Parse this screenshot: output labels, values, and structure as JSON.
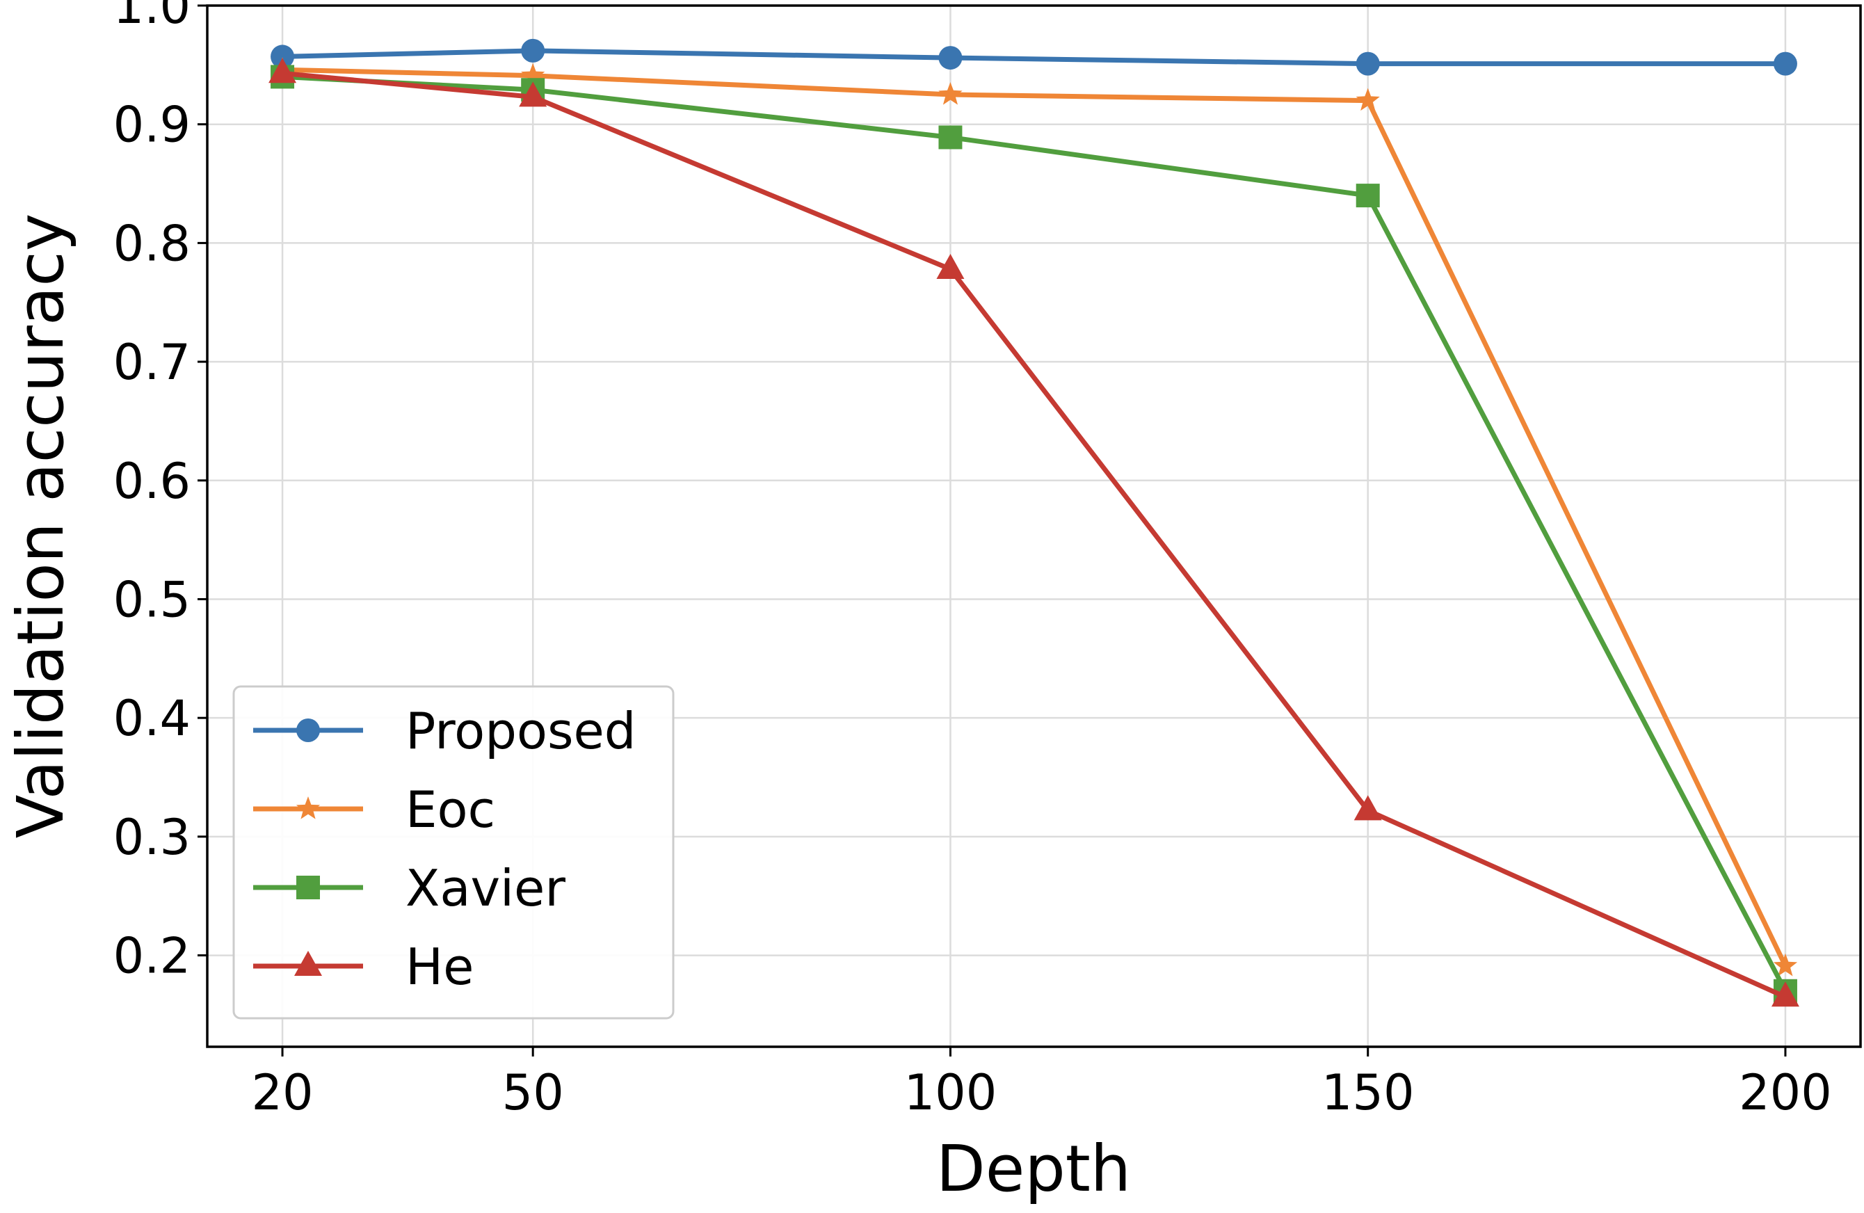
{
  "chart_data": {
    "type": "line",
    "title": "",
    "xlabel": "Depth",
    "ylabel": "Validation accuracy",
    "x": [
      20,
      50,
      100,
      150,
      200
    ],
    "xticks": [
      "20",
      "50",
      "100",
      "150",
      "200"
    ],
    "yticks": [
      "0.2",
      "0.3",
      "0.4",
      "0.5",
      "0.6",
      "0.7",
      "0.8",
      "0.9",
      "1.0"
    ],
    "xlim": [
      11,
      209
    ],
    "ylim": [
      0.123,
      1.0
    ],
    "grid": true,
    "legend_position": "lower-left",
    "series": [
      {
        "name": "Proposed",
        "color": "#3a75b0",
        "marker": "circle",
        "values": [
          0.957,
          0.962,
          0.956,
          0.951,
          0.951
        ]
      },
      {
        "name": "Eoc",
        "color": "#ef8636",
        "marker": "star",
        "values": [
          0.946,
          0.941,
          0.925,
          0.92,
          0.191
        ]
      },
      {
        "name": "Xavier",
        "color": "#519e3e",
        "marker": "square",
        "values": [
          0.94,
          0.929,
          0.889,
          0.84,
          0.17
        ]
      },
      {
        "name": "He",
        "color": "#c53a32",
        "marker": "triangle",
        "values": [
          0.943,
          0.923,
          0.778,
          0.322,
          0.165
        ]
      }
    ]
  }
}
